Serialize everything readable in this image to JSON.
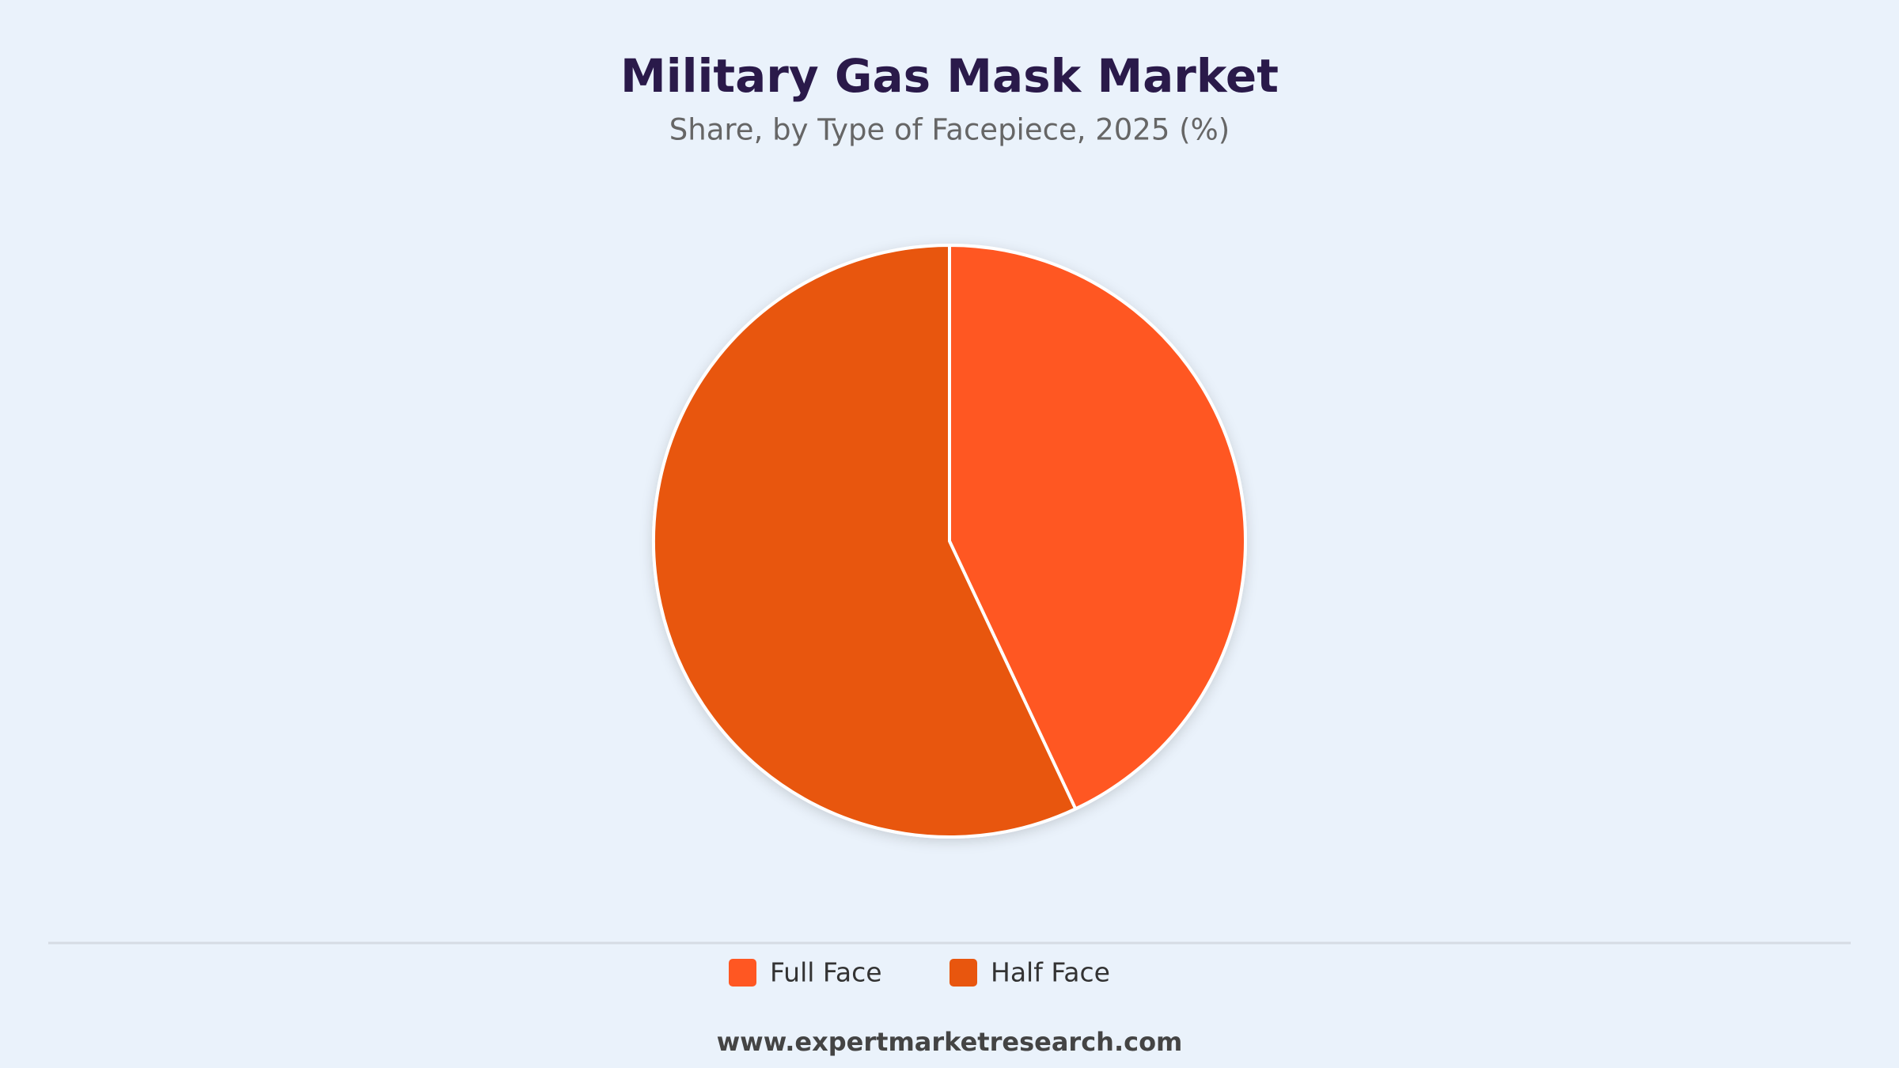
{
  "chart_data": {
    "type": "pie",
    "title": "Military Gas Mask Market",
    "subtitle": "Share, by Type of Facepiece, 2025 (%)",
    "categories": [
      "Full Face",
      "Half Face"
    ],
    "values": [
      43,
      57
    ],
    "colors": [
      "#ff5722",
      "#e8560e"
    ],
    "legend": "bottom",
    "source": "www.expertmarketresearch.com"
  }
}
